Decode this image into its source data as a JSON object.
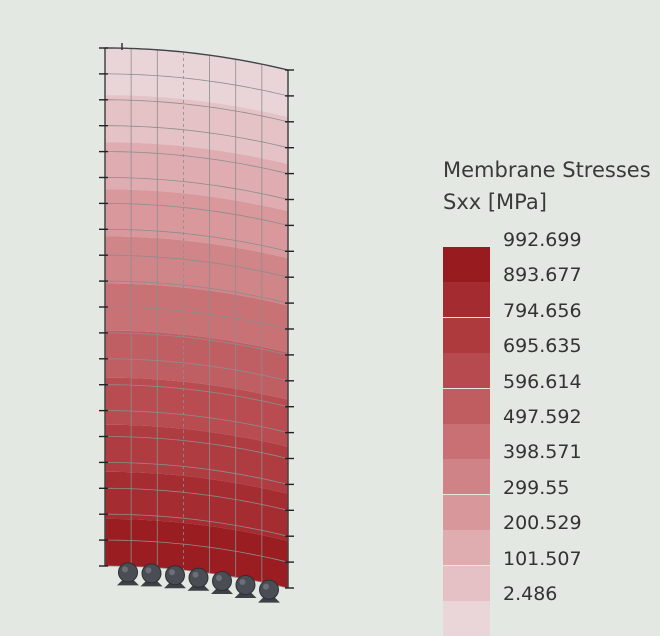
{
  "legend": {
    "title": "Membrane Stresses",
    "subtitle": "Sxx [MPa]",
    "values": [
      "992.699",
      "893.677",
      "794.656",
      "695.635",
      "596.614",
      "497.592",
      "398.571",
      "299.55",
      "200.529",
      "101.507",
      "2.486"
    ],
    "colors": [
      "#981b1f",
      "#a42b2f",
      "#ae3a3e",
      "#b74a4e",
      "#c05d60",
      "#c87073",
      "#d08387",
      "#d8979b",
      "#dfacb0",
      "#e5c1c5",
      "#ead6d9"
    ]
  },
  "model": {
    "band_colors": [
      "#e9d5d8",
      "#e5c2c6",
      "#dfadb1",
      "#d8989c",
      "#d08589",
      "#c87276",
      "#c05f63",
      "#b84c50",
      "#af3c40",
      "#a52c30",
      "#9a1d21"
    ],
    "support_count": 7
  }
}
